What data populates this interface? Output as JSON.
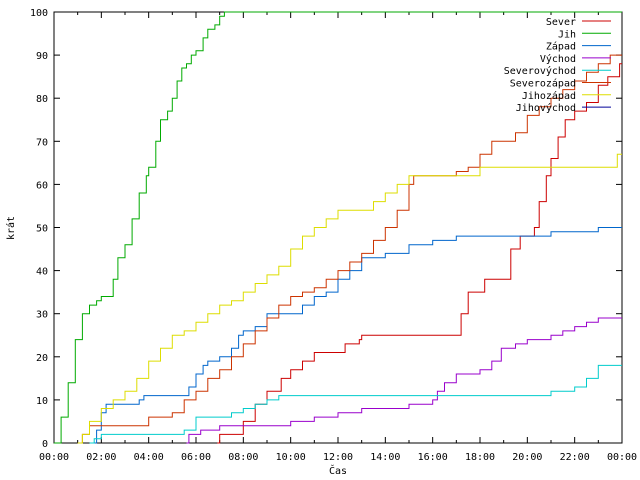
{
  "chart_data": {
    "type": "line",
    "xlabel": "Čas",
    "ylabel": "krát",
    "xlim_hours": [
      0,
      24
    ],
    "ylim": [
      0,
      100
    ],
    "x_ticks": [
      "00:00",
      "02:00",
      "04:00",
      "06:00",
      "08:00",
      "10:00",
      "12:00",
      "14:00",
      "16:00",
      "18:00",
      "20:00",
      "22:00",
      "00:00"
    ],
    "y_ticks": [
      "0",
      "10",
      "20",
      "30",
      "40",
      "50",
      "60",
      "70",
      "80",
      "90",
      "100"
    ],
    "legend_position": "top-right",
    "step": true,
    "series": [
      {
        "name": "Sever",
        "color": "#cc0000",
        "points": [
          [
            6.9,
            0
          ],
          [
            7.0,
            2
          ],
          [
            8.0,
            5
          ],
          [
            8.5,
            9
          ],
          [
            9.0,
            12
          ],
          [
            9.6,
            15
          ],
          [
            10.0,
            17
          ],
          [
            10.5,
            19
          ],
          [
            11.0,
            21
          ],
          [
            12.0,
            21
          ],
          [
            12.3,
            23
          ],
          [
            12.9,
            24
          ],
          [
            13.0,
            25
          ],
          [
            16.5,
            25
          ],
          [
            17.0,
            25
          ],
          [
            17.2,
            30
          ],
          [
            17.5,
            35
          ],
          [
            18.0,
            35
          ],
          [
            18.2,
            38
          ],
          [
            19.0,
            38
          ],
          [
            19.3,
            45
          ],
          [
            19.7,
            48
          ],
          [
            20.0,
            48
          ],
          [
            20.3,
            50
          ],
          [
            20.5,
            56
          ],
          [
            20.8,
            62
          ],
          [
            21.0,
            66
          ],
          [
            21.3,
            71
          ],
          [
            21.6,
            75
          ],
          [
            22.0,
            77
          ],
          [
            22.5,
            79
          ],
          [
            23.0,
            83
          ],
          [
            23.4,
            85
          ],
          [
            23.9,
            88
          ]
        ]
      },
      {
        "name": "Jih",
        "color": "#00aa00",
        "points": [
          [
            0,
            0
          ],
          [
            0.3,
            6
          ],
          [
            0.6,
            14
          ],
          [
            0.9,
            24
          ],
          [
            1.2,
            30
          ],
          [
            1.5,
            32
          ],
          [
            1.8,
            33
          ],
          [
            2.0,
            34
          ],
          [
            2.3,
            34
          ],
          [
            2.5,
            38
          ],
          [
            2.7,
            43
          ],
          [
            3.0,
            46
          ],
          [
            3.3,
            52
          ],
          [
            3.6,
            58
          ],
          [
            3.9,
            62
          ],
          [
            4.0,
            64
          ],
          [
            4.3,
            70
          ],
          [
            4.5,
            75
          ],
          [
            4.8,
            77
          ],
          [
            5.0,
            80
          ],
          [
            5.2,
            84
          ],
          [
            5.4,
            87
          ],
          [
            5.6,
            88
          ],
          [
            5.8,
            90
          ],
          [
            6.0,
            91
          ],
          [
            6.3,
            94
          ],
          [
            6.5,
            96
          ],
          [
            6.8,
            97
          ],
          [
            7.0,
            99
          ],
          [
            7.2,
            100
          ]
        ]
      },
      {
        "name": "Západ",
        "color": "#0066cc",
        "points": [
          [
            1.6,
            0
          ],
          [
            1.8,
            3
          ],
          [
            2.0,
            7
          ],
          [
            2.2,
            9
          ],
          [
            3.5,
            9
          ],
          [
            3.6,
            10
          ],
          [
            3.8,
            11
          ],
          [
            5.0,
            11
          ],
          [
            5.7,
            13
          ],
          [
            6.0,
            16
          ],
          [
            6.3,
            18
          ],
          [
            6.5,
            19
          ],
          [
            7.0,
            20
          ],
          [
            7.5,
            22
          ],
          [
            7.8,
            25
          ],
          [
            8.0,
            26
          ],
          [
            8.5,
            27
          ],
          [
            9.0,
            30
          ],
          [
            10.0,
            30
          ],
          [
            10.5,
            32
          ],
          [
            11.0,
            34
          ],
          [
            11.5,
            35
          ],
          [
            12.0,
            38
          ],
          [
            12.5,
            40
          ],
          [
            13.0,
            43
          ],
          [
            14.0,
            44
          ],
          [
            15.0,
            46
          ],
          [
            16.0,
            47
          ],
          [
            17.0,
            48
          ],
          [
            20.5,
            48
          ],
          [
            21.0,
            49
          ],
          [
            22.0,
            49
          ],
          [
            23.0,
            50
          ],
          [
            24,
            50
          ]
        ]
      },
      {
        "name": "Východ",
        "color": "#9900cc",
        "points": [
          [
            5.6,
            0
          ],
          [
            5.7,
            2
          ],
          [
            6.2,
            3
          ],
          [
            7.0,
            4
          ],
          [
            9.0,
            4
          ],
          [
            10.0,
            5
          ],
          [
            11.0,
            6
          ],
          [
            12.0,
            7
          ],
          [
            13.0,
            8
          ],
          [
            15.0,
            9
          ],
          [
            16.0,
            10
          ],
          [
            16.2,
            12
          ],
          [
            16.5,
            14
          ],
          [
            17.0,
            16
          ],
          [
            18.0,
            17
          ],
          [
            18.5,
            19
          ],
          [
            18.9,
            22
          ],
          [
            19.5,
            23
          ],
          [
            20.0,
            24
          ],
          [
            21.0,
            25
          ],
          [
            21.5,
            26
          ],
          [
            22.0,
            27
          ],
          [
            22.5,
            28
          ],
          [
            23.0,
            29
          ],
          [
            24,
            29
          ]
        ]
      },
      {
        "name": "Severovýchod",
        "color": "#00cccc",
        "points": [
          [
            1.5,
            0
          ],
          [
            1.7,
            1
          ],
          [
            2.0,
            2
          ],
          [
            5.0,
            2
          ],
          [
            5.5,
            3
          ],
          [
            6.0,
            6
          ],
          [
            7.5,
            7
          ],
          [
            8.0,
            8
          ],
          [
            8.5,
            9
          ],
          [
            9.0,
            10
          ],
          [
            9.5,
            11
          ],
          [
            12.0,
            11
          ],
          [
            20.0,
            11
          ],
          [
            21.0,
            12
          ],
          [
            22.0,
            13
          ],
          [
            22.5,
            15
          ],
          [
            23.0,
            18
          ],
          [
            24,
            18
          ]
        ]
      },
      {
        "name": "Severozápad",
        "color": "#cc3300",
        "points": [
          [
            1.0,
            0
          ],
          [
            1.2,
            2
          ],
          [
            1.5,
            4
          ],
          [
            2.0,
            4
          ],
          [
            3.5,
            4
          ],
          [
            4.0,
            6
          ],
          [
            5.0,
            7
          ],
          [
            5.5,
            10
          ],
          [
            6.0,
            12
          ],
          [
            6.5,
            15
          ],
          [
            7.0,
            17
          ],
          [
            7.5,
            20
          ],
          [
            8.0,
            23
          ],
          [
            8.5,
            26
          ],
          [
            9.0,
            29
          ],
          [
            9.5,
            32
          ],
          [
            10.0,
            34
          ],
          [
            10.5,
            35
          ],
          [
            11.0,
            36
          ],
          [
            11.5,
            38
          ],
          [
            12.0,
            40
          ],
          [
            12.5,
            42
          ],
          [
            13.0,
            44
          ],
          [
            13.5,
            47
          ],
          [
            14.0,
            50
          ],
          [
            14.5,
            54
          ],
          [
            15.0,
            60
          ],
          [
            15.2,
            62
          ],
          [
            16.0,
            62
          ],
          [
            17.0,
            63
          ],
          [
            17.5,
            64
          ],
          [
            18.0,
            67
          ],
          [
            18.5,
            70
          ],
          [
            19.0,
            70
          ],
          [
            19.5,
            72
          ],
          [
            20.0,
            76
          ],
          [
            20.5,
            78
          ],
          [
            21.0,
            80
          ],
          [
            21.5,
            82
          ],
          [
            22.0,
            84
          ],
          [
            22.5,
            86
          ],
          [
            23.0,
            88
          ],
          [
            23.5,
            90
          ],
          [
            24,
            90
          ]
        ]
      },
      {
        "name": "Jihozápad",
        "color": "#dddd00",
        "points": [
          [
            1.0,
            0
          ],
          [
            1.2,
            2
          ],
          [
            1.5,
            5
          ],
          [
            2.0,
            8
          ],
          [
            2.5,
            10
          ],
          [
            3.0,
            12
          ],
          [
            3.5,
            15
          ],
          [
            4.0,
            19
          ],
          [
            4.5,
            22
          ],
          [
            5.0,
            25
          ],
          [
            5.5,
            26
          ],
          [
            6.0,
            28
          ],
          [
            6.5,
            30
          ],
          [
            7.0,
            32
          ],
          [
            7.5,
            33
          ],
          [
            8.0,
            35
          ],
          [
            8.5,
            37
          ],
          [
            9.0,
            39
          ],
          [
            9.5,
            41
          ],
          [
            10.0,
            45
          ],
          [
            10.5,
            48
          ],
          [
            11.0,
            50
          ],
          [
            11.5,
            52
          ],
          [
            12.0,
            54
          ],
          [
            13.0,
            54
          ],
          [
            13.5,
            56
          ],
          [
            14.0,
            58
          ],
          [
            14.5,
            60
          ],
          [
            15.0,
            62
          ],
          [
            16.0,
            62
          ],
          [
            17.0,
            62
          ],
          [
            18.0,
            64
          ],
          [
            19.0,
            64
          ],
          [
            20.0,
            64
          ],
          [
            23.5,
            64
          ],
          [
            23.8,
            67
          ],
          [
            24,
            67
          ]
        ]
      },
      {
        "name": "Jihovýchod",
        "color": "#000099",
        "points": []
      }
    ]
  }
}
